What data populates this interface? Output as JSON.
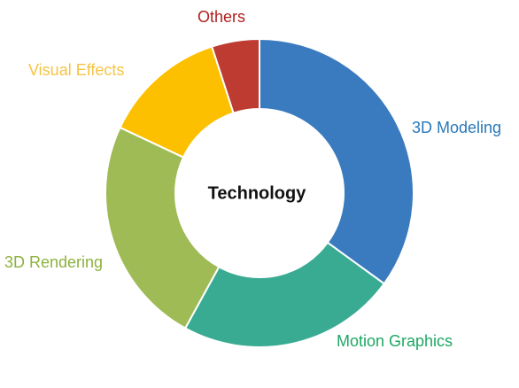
{
  "chart_data": {
    "type": "donut",
    "center_label": "Technology",
    "categories": [
      "3D Modeling",
      "Motion Graphics",
      "3D Rendering",
      "Visual Effects",
      "Others"
    ],
    "values": [
      35,
      23,
      24,
      13,
      5
    ],
    "colors": [
      "#3a7bbf",
      "#3aab93",
      "#9fbb55",
      "#fcc000",
      "#be3b32"
    ],
    "label_colors": [
      "#2a78b8",
      "#1ea763",
      "#8db23e",
      "#f5c443",
      "#b01e1e"
    ]
  }
}
